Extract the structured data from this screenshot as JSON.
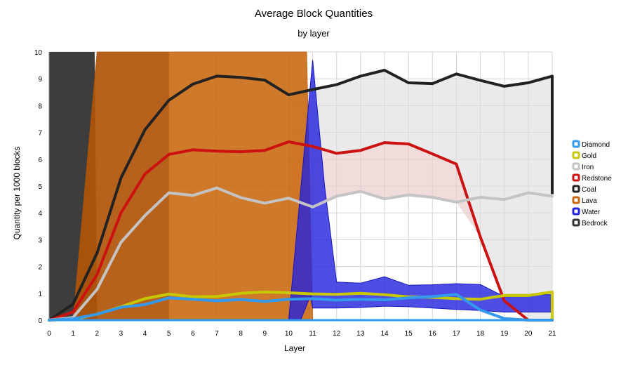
{
  "chart_data": {
    "type": "line",
    "title": "Average Block Quantities",
    "subtitle": "by layer",
    "xlabel": "Layer",
    "ylabel": "Quantity per 1000 blocks",
    "x": [
      0,
      1,
      2,
      3,
      4,
      5,
      6,
      7,
      8,
      9,
      10,
      11,
      12,
      13,
      14,
      15,
      16,
      17,
      18,
      19,
      20,
      21
    ],
    "ylim": [
      0,
      10
    ],
    "yticks": [
      0,
      1,
      2,
      3,
      4,
      5,
      6,
      7,
      8,
      9,
      10
    ],
    "grid": true,
    "legend_position": "right",
    "series": [
      {
        "name": "Bedrock",
        "kind": "area",
        "color": "#333333",
        "points": [
          [
            0,
            10
          ],
          [
            1,
            10
          ],
          [
            1.9,
            10
          ],
          [
            2,
            0
          ]
        ]
      },
      {
        "name": "Lava",
        "kind": "area",
        "color": "#c8660e",
        "points": [
          [
            1,
            0
          ],
          [
            2,
            10
          ],
          [
            5,
            10
          ],
          [
            10.75,
            10
          ],
          [
            11,
            0
          ]
        ]
      },
      {
        "name": "Water",
        "kind": "area",
        "color": "#2222dd",
        "upper": [
          [
            10,
            0
          ],
          [
            11,
            9.7
          ],
          [
            11.5,
            5.0
          ],
          [
            12,
            1.42
          ],
          [
            13,
            1.38
          ],
          [
            14,
            1.62
          ],
          [
            15,
            1.3
          ],
          [
            16,
            1.32
          ],
          [
            17,
            1.36
          ],
          [
            18,
            1.33
          ],
          [
            19,
            0.88
          ],
          [
            20,
            0.95
          ],
          [
            21,
            0.95
          ]
        ],
        "lower": [
          [
            21,
            0.3
          ],
          [
            20,
            0.3
          ],
          [
            19,
            0.3
          ],
          [
            18,
            0.36
          ],
          [
            17,
            0.4
          ],
          [
            16,
            0.45
          ],
          [
            15,
            0.5
          ],
          [
            14,
            0.52
          ],
          [
            13,
            0.47
          ],
          [
            12,
            0.45
          ],
          [
            11,
            0.45
          ],
          [
            10.9,
            0.9
          ],
          [
            10.5,
            0
          ]
        ]
      },
      {
        "name": "Coal",
        "kind": "line",
        "color": "#222222",
        "values": [
          0,
          0.6,
          2.5,
          5.3,
          7.1,
          8.2,
          8.8,
          9.1,
          9.05,
          8.95,
          8.4,
          8.6,
          8.78,
          9.1,
          9.32,
          8.85,
          8.82,
          9.18,
          8.94,
          8.72,
          8.85,
          9.1
        ],
        "tail_drop": 4.7
      },
      {
        "name": "Redstone",
        "kind": "line",
        "color": "#cc1111",
        "values": [
          0,
          0.3,
          1.7,
          4.0,
          5.45,
          6.18,
          6.35,
          6.3,
          6.28,
          6.33,
          6.65,
          6.48,
          6.22,
          6.33,
          6.62,
          6.57,
          6.2,
          5.82,
          3.1,
          0.72,
          0,
          0
        ]
      },
      {
        "name": "Iron",
        "kind": "line",
        "color": "#c4c4c4",
        "values": [
          0,
          0.1,
          1.15,
          2.9,
          3.9,
          4.75,
          4.65,
          4.93,
          4.57,
          4.36,
          4.55,
          4.22,
          4.62,
          4.8,
          4.52,
          4.67,
          4.58,
          4.4,
          4.58,
          4.5,
          4.75,
          4.62
        ]
      },
      {
        "name": "Gold",
        "kind": "line",
        "color": "#c8c800",
        "values": [
          0,
          0.03,
          0.22,
          0.5,
          0.8,
          0.97,
          0.87,
          0.88,
          1.0,
          1.05,
          1.02,
          0.98,
          0.96,
          1.0,
          0.95,
          0.87,
          0.85,
          0.8,
          0.78,
          0.92,
          0.92,
          1.05
        ],
        "tail_drop": 0
      },
      {
        "name": "Diamond",
        "kind": "line",
        "color": "#3399ee",
        "values": [
          0,
          0.05,
          0.22,
          0.48,
          0.58,
          0.83,
          0.78,
          0.72,
          0.77,
          0.7,
          0.78,
          0.8,
          0.75,
          0.78,
          0.76,
          0.83,
          0.88,
          0.96,
          0.38,
          0.06,
          0,
          0
        ]
      }
    ],
    "legend_order": [
      "Diamond",
      "Gold",
      "Iron",
      "Redstone",
      "Coal",
      "Lava",
      "Water",
      "Bedrock"
    ]
  }
}
